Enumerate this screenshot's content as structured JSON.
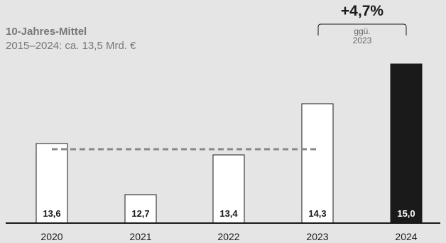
{
  "chart_data": {
    "type": "bar",
    "categories": [
      "2020",
      "2021",
      "2022",
      "2023",
      "2024"
    ],
    "values": [
      13.6,
      12.7,
      13.4,
      14.3,
      15.0
    ],
    "value_labels": [
      "13,6",
      "12,7",
      "13,4",
      "14,3",
      "15,0"
    ],
    "highlight_index": 4,
    "average": {
      "value": 13.5,
      "title": "10-Jahres-Mittel",
      "subtitle": "2015–2024: ca. 13,5 Mrd. €"
    },
    "change": {
      "value": "+4,7%",
      "note_line1": "ggü.",
      "note_line2": "2023"
    },
    "ylim": [
      12.2,
      15.0
    ],
    "grid": false,
    "colors": {
      "background": "#e5e5e5",
      "bar_fill": "#ffffff",
      "bar_highlight": "#1a1a1a",
      "bar_stroke": "#1a1a1a",
      "average_line": "#888888",
      "axis": "#1a1a1a",
      "label_text": "#1a1a1a",
      "label_text_inverse": "#ffffff",
      "muted_text": "#777777"
    }
  }
}
